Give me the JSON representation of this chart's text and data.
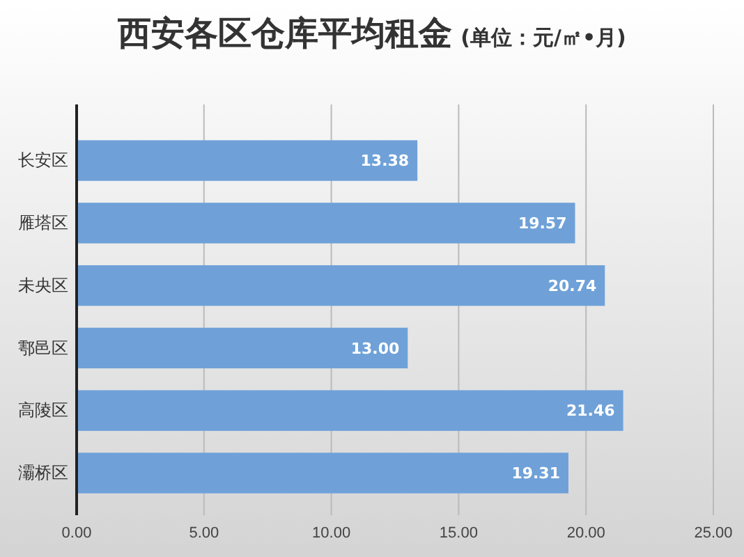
{
  "chart_data": {
    "type": "bar",
    "title": "西安各区仓库平均租金",
    "subtitle": "(单位：元/㎡•月)",
    "orientation": "horizontal",
    "categories": [
      "长安区",
      "雁塔区",
      "未央区",
      "鄠邑区",
      "高陵区",
      "灞桥区"
    ],
    "values": [
      13.38,
      19.57,
      20.74,
      13.0,
      21.46,
      19.31
    ],
    "color": "#6fa1d8",
    "value_labels": [
      "13.38",
      "19.57",
      "20.74",
      "13.00",
      "21.46",
      "19.31"
    ],
    "xlim": [
      0,
      25
    ],
    "xticks": [
      {
        "value": 0,
        "label": "0.00"
      },
      {
        "value": 5,
        "label": "5.00"
      },
      {
        "value": 10,
        "label": "10.00"
      },
      {
        "value": 15,
        "label": "15.00"
      },
      {
        "value": 20,
        "label": "20.00"
      },
      {
        "value": 25,
        "label": "25.00"
      }
    ],
    "grid": "x"
  }
}
